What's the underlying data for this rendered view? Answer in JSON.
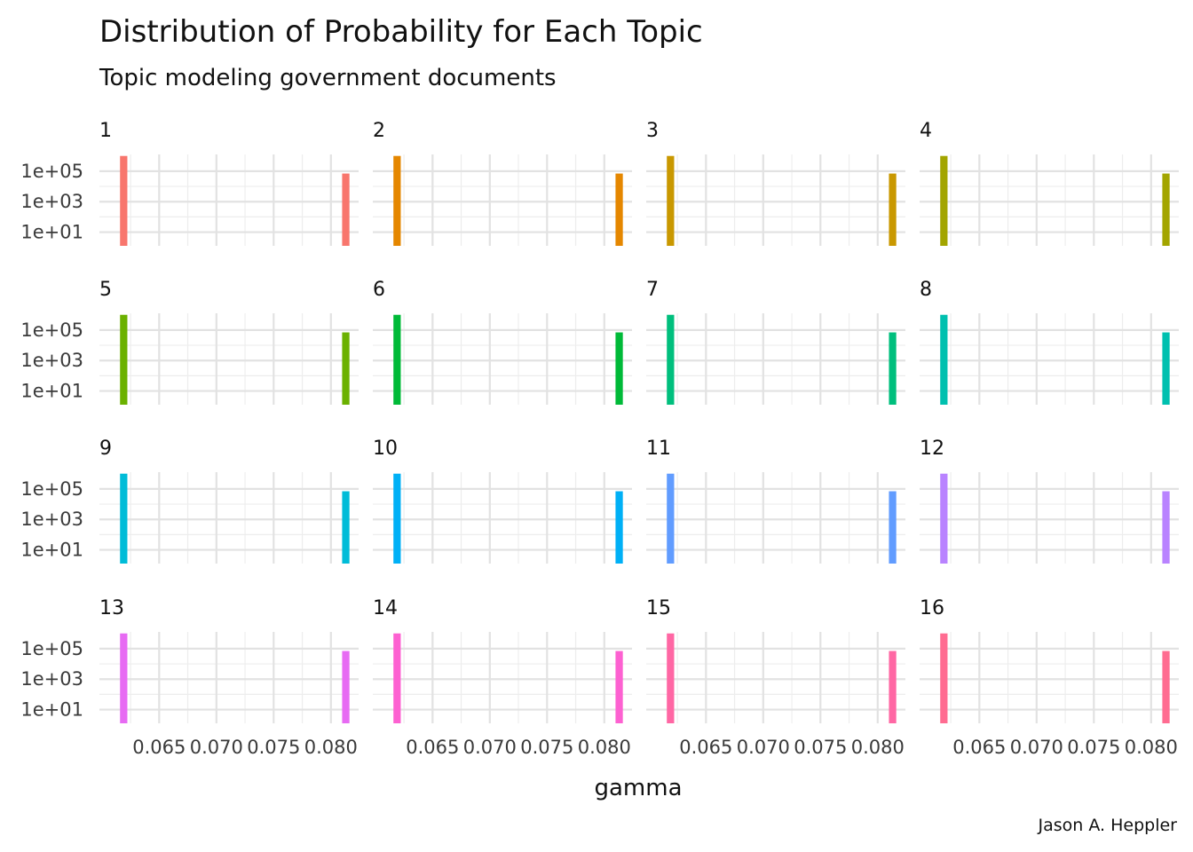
{
  "chart_data": {
    "type": "bar",
    "title": "Distribution of Probability for Each Topic",
    "subtitle": "Topic modeling government documents",
    "xlabel": "gamma",
    "ylabel": "",
    "caption": "Jason A. Heppler",
    "y_scale": "log10",
    "grid": true,
    "xlim": [
      0.0604,
      0.0818
    ],
    "ylim_log10": [
      0.1,
      6.1
    ],
    "x_ticks": [
      0.065,
      0.07,
      0.075,
      0.08
    ],
    "x_tick_labels": [
      "0.065",
      "0.070",
      "0.075",
      "0.080"
    ],
    "y_ticks": [
      10,
      1000,
      100000
    ],
    "y_tick_labels": [
      "1e+01",
      "1e+03",
      "1e+05"
    ],
    "bin_width": 0.00064,
    "facets": [
      {
        "topic": "1",
        "color": "#F8766D",
        "bars": [
          {
            "x": 0.0619,
            "count": 1000000
          },
          {
            "x": 0.0813,
            "count": 70000
          }
        ]
      },
      {
        "topic": "2",
        "color": "#E58700",
        "bars": [
          {
            "x": 0.0619,
            "count": 1000000
          },
          {
            "x": 0.0813,
            "count": 70000
          }
        ]
      },
      {
        "topic": "3",
        "color": "#C99800",
        "bars": [
          {
            "x": 0.0619,
            "count": 1000000
          },
          {
            "x": 0.0813,
            "count": 70000
          }
        ]
      },
      {
        "topic": "4",
        "color": "#A3A500",
        "bars": [
          {
            "x": 0.0619,
            "count": 1000000
          },
          {
            "x": 0.0813,
            "count": 70000
          }
        ]
      },
      {
        "topic": "5",
        "color": "#6BB100",
        "bars": [
          {
            "x": 0.0619,
            "count": 1000000
          },
          {
            "x": 0.0813,
            "count": 70000
          }
        ]
      },
      {
        "topic": "6",
        "color": "#00BA38",
        "bars": [
          {
            "x": 0.0619,
            "count": 1000000
          },
          {
            "x": 0.0813,
            "count": 70000
          }
        ]
      },
      {
        "topic": "7",
        "color": "#00BF7D",
        "bars": [
          {
            "x": 0.0619,
            "count": 1000000
          },
          {
            "x": 0.0813,
            "count": 70000
          }
        ]
      },
      {
        "topic": "8",
        "color": "#00C0AF",
        "bars": [
          {
            "x": 0.0619,
            "count": 1000000
          },
          {
            "x": 0.0813,
            "count": 70000
          }
        ]
      },
      {
        "topic": "9",
        "color": "#00BCD8",
        "bars": [
          {
            "x": 0.0619,
            "count": 1000000
          },
          {
            "x": 0.0813,
            "count": 70000
          }
        ]
      },
      {
        "topic": "10",
        "color": "#00B0F6",
        "bars": [
          {
            "x": 0.0619,
            "count": 1000000
          },
          {
            "x": 0.0813,
            "count": 70000
          }
        ]
      },
      {
        "topic": "11",
        "color": "#619CFF",
        "bars": [
          {
            "x": 0.0619,
            "count": 1000000
          },
          {
            "x": 0.0813,
            "count": 70000
          }
        ]
      },
      {
        "topic": "12",
        "color": "#B983FF",
        "bars": [
          {
            "x": 0.0619,
            "count": 1000000
          },
          {
            "x": 0.0813,
            "count": 70000
          }
        ]
      },
      {
        "topic": "13",
        "color": "#E76BF3",
        "bars": [
          {
            "x": 0.0619,
            "count": 1000000
          },
          {
            "x": 0.0813,
            "count": 70000
          }
        ]
      },
      {
        "topic": "14",
        "color": "#FD61D1",
        "bars": [
          {
            "x": 0.0619,
            "count": 1000000
          },
          {
            "x": 0.0813,
            "count": 70000
          }
        ]
      },
      {
        "topic": "15",
        "color": "#FF67A4",
        "bars": [
          {
            "x": 0.0619,
            "count": 1000000
          },
          {
            "x": 0.0813,
            "count": 70000
          }
        ]
      },
      {
        "topic": "16",
        "color": "#FF6C91",
        "bars": [
          {
            "x": 0.0619,
            "count": 1000000
          },
          {
            "x": 0.0813,
            "count": 70000
          }
        ]
      }
    ]
  }
}
